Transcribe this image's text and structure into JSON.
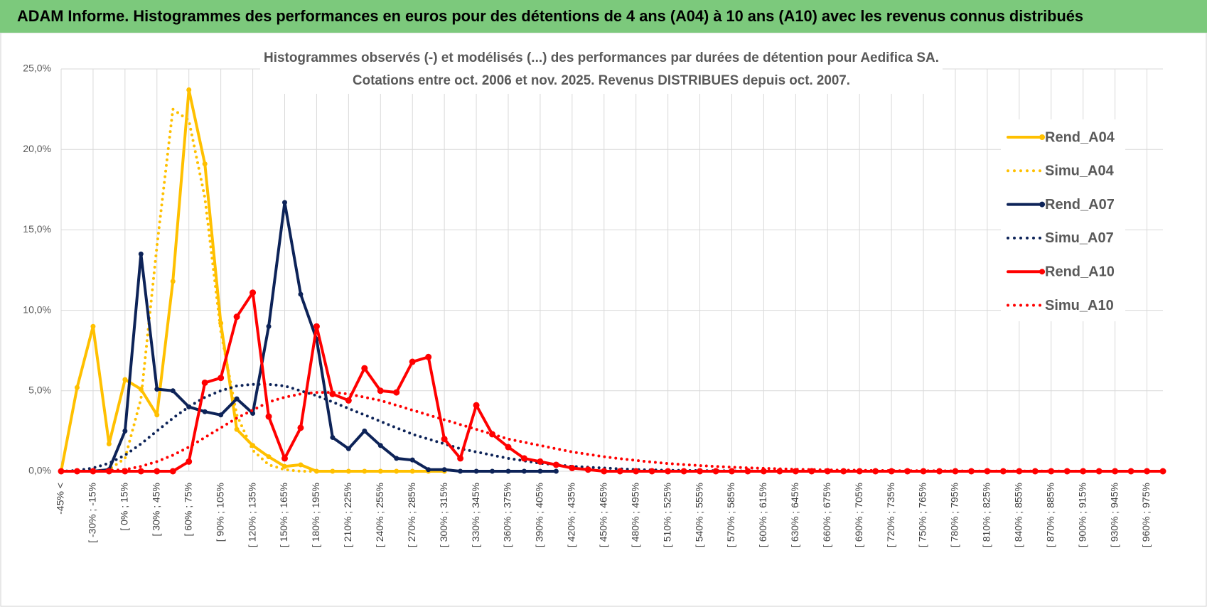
{
  "chart_data": {
    "type": "line",
    "header": "ADAM Informe. Histogrammes des performances en euros pour des détentions de 4 ans (A04) à 10 ans (A10) avec les revenus connus distribués",
    "title": "Histogrammes observés (-) et modélisés (...) des performances par durées de détention pour Aedifica SA.",
    "subtitle": "Cotations entre oct. 2006 et nov. 2025. Revenus DISTRIBUES depuis oct. 2007.",
    "categories": [
      "-45% <",
      null,
      "[ -30% ; -15%",
      null,
      "[ 0% ; 15%",
      null,
      "[ 30% ; 45%",
      null,
      "[ 60% ; 75%",
      null,
      "[ 90% ; 105%",
      null,
      "[ 120% ; 135%",
      null,
      "[ 150% ; 165%",
      null,
      "[ 180% ; 195%",
      null,
      "[ 210% ; 225%",
      null,
      "[ 240% ; 255%",
      null,
      "[ 270% ; 285%",
      null,
      "[ 300% ; 315%",
      null,
      "[ 330% ; 345%",
      null,
      "[ 360% ; 375%",
      null,
      "[ 390% ; 405%",
      null,
      "[ 420% ; 435%",
      null,
      "[ 450% ; 465%",
      null,
      "[ 480% ; 495%",
      null,
      "[ 510% ; 525%",
      null,
      "[ 540% ; 555%",
      null,
      "[ 570% ; 585%",
      null,
      "[ 600% ; 615%",
      null,
      "[ 630% ; 645%",
      null,
      "[ 660% ; 675%",
      null,
      "[ 690% ; 705%",
      null,
      "[ 720% ; 735%",
      null,
      "[ 750% ; 765%",
      null,
      "[ 780% ; 795%",
      null,
      "[ 810% ; 825%",
      null,
      "[ 840% ; 855%",
      null,
      "[ 870% ; 885%",
      null,
      "[ 900% ; 915%",
      null,
      "[ 930% ; 945%",
      null,
      "[ 960% ; 975%",
      null
    ],
    "ylim": [
      0,
      25
    ],
    "yticks": [
      {
        "value": 0,
        "label": "0,0%"
      },
      {
        "value": 5,
        "label": "5,0%"
      },
      {
        "value": 10,
        "label": "10,0%"
      },
      {
        "value": 15,
        "label": "15,0%"
      },
      {
        "value": 20,
        "label": "20,0%"
      },
      {
        "value": 25,
        "label": "25,0%"
      }
    ],
    "grid": true,
    "legend": "right",
    "series": [
      {
        "name": "Rend_A04",
        "color": "#ffc000",
        "style": "solid",
        "marker": true,
        "values": [
          0,
          5.2,
          9.0,
          1.7,
          5.7,
          5.1,
          3.5,
          11.8,
          23.7,
          19.1,
          9.2,
          2.6,
          1.6,
          0.9,
          0.3,
          0.4,
          0,
          0,
          0,
          0,
          0,
          0,
          0,
          0,
          0,
          null,
          null,
          null,
          null,
          null,
          null,
          null,
          null,
          null,
          null,
          null,
          null,
          null,
          null,
          null,
          null,
          null,
          null,
          null,
          null,
          null,
          null,
          null,
          null,
          null,
          null,
          null,
          null,
          null,
          null,
          null,
          null,
          null,
          null,
          null,
          null,
          null,
          null,
          null,
          null,
          null,
          null,
          null,
          null,
          null
        ]
      },
      {
        "name": "Simu_A04",
        "color": "#ffc000",
        "style": "dotted",
        "marker": false,
        "values": [
          0,
          0,
          0,
          0.1,
          0.8,
          4.5,
          14,
          22.5,
          21.8,
          17,
          8.7,
          3.5,
          1.3,
          0.4,
          0.1,
          0,
          0,
          0,
          0,
          0,
          0,
          0,
          0,
          0,
          0,
          null,
          null,
          null,
          null,
          null,
          null,
          null,
          null,
          null,
          null,
          null,
          null,
          null,
          null,
          null,
          null,
          null,
          null,
          null,
          null,
          null,
          null,
          null,
          null,
          null,
          null,
          null,
          null,
          null,
          null,
          null,
          null,
          null,
          null,
          null,
          null,
          null,
          null,
          null,
          null,
          null,
          null,
          null,
          null,
          null
        ]
      },
      {
        "name": "Rend_A07",
        "color": "#0d2358",
        "style": "solid",
        "marker": true,
        "values": [
          0,
          0,
          0,
          0.1,
          2.5,
          13.5,
          5.1,
          5.0,
          4.0,
          3.7,
          3.5,
          4.5,
          3.6,
          9.0,
          16.7,
          11.0,
          8.2,
          2.1,
          1.4,
          2.5,
          1.6,
          0.8,
          0.7,
          0.1,
          0.1,
          0,
          0,
          0,
          0,
          0,
          0,
          0,
          null,
          null,
          null,
          null,
          null,
          null,
          null,
          null,
          null,
          null,
          null,
          null,
          null,
          null,
          null,
          null,
          null,
          null,
          null,
          null,
          null,
          null,
          null,
          null,
          null,
          null,
          null,
          null,
          null,
          null,
          null,
          null,
          null,
          null,
          null,
          null,
          null,
          null
        ]
      },
      {
        "name": "Simu_A07",
        "color": "#0d2358",
        "style": "dotted",
        "marker": false,
        "values": [
          0,
          0.05,
          0.2,
          0.5,
          1.0,
          1.7,
          2.5,
          3.3,
          4.0,
          4.6,
          5.0,
          5.3,
          5.4,
          5.4,
          5.3,
          5.0,
          4.7,
          4.3,
          3.9,
          3.5,
          3.1,
          2.7,
          2.3,
          2.0,
          1.7,
          1.4,
          1.2,
          1.0,
          0.8,
          0.65,
          0.5,
          0.4,
          0.3,
          0.25,
          0.2,
          0.15,
          0.1,
          0.08,
          0.06,
          0.05,
          0.04,
          0.03,
          0.02,
          0.01,
          0.01,
          0.01,
          0.01,
          0.01,
          0.01,
          0.01,
          0.01,
          0,
          0,
          0,
          0,
          0,
          0,
          0,
          0,
          0,
          0,
          0,
          0,
          0,
          0,
          0,
          0,
          0,
          0,
          0
        ]
      },
      {
        "name": "Rend_A10",
        "color": "#ff0000",
        "style": "solid",
        "marker": true,
        "values": [
          0,
          0,
          0,
          0,
          0,
          0,
          0,
          0,
          0.6,
          5.5,
          5.8,
          9.6,
          11.1,
          3.4,
          0.8,
          2.7,
          9.0,
          4.8,
          4.4,
          6.4,
          5.0,
          4.9,
          6.8,
          7.1,
          2.0,
          0.8,
          4.1,
          2.3,
          1.5,
          0.8,
          0.6,
          0.4,
          0.2,
          0.1,
          0,
          0,
          0,
          0,
          0,
          0,
          0,
          0,
          0,
          0,
          0,
          0,
          0,
          0,
          0,
          0,
          0,
          0,
          0,
          0,
          0,
          0,
          0,
          0,
          0,
          0,
          0,
          0,
          0,
          0,
          0,
          0,
          0,
          0,
          0,
          0
        ]
      },
      {
        "name": "Simu_A10",
        "color": "#ff0000",
        "style": "dotted",
        "marker": false,
        "values": [
          0,
          0,
          0,
          0.05,
          0.1,
          0.3,
          0.6,
          1.0,
          1.5,
          2.1,
          2.7,
          3.3,
          3.8,
          4.3,
          4.6,
          4.8,
          4.9,
          4.9,
          4.8,
          4.6,
          4.4,
          4.1,
          3.8,
          3.5,
          3.2,
          2.9,
          2.6,
          2.3,
          2.0,
          1.8,
          1.6,
          1.4,
          1.2,
          1.05,
          0.9,
          0.78,
          0.67,
          0.57,
          0.48,
          0.41,
          0.35,
          0.3,
          0.25,
          0.21,
          0.18,
          0.15,
          0.12,
          0.1,
          0.08,
          0.07,
          0.06,
          0.05,
          0.04,
          0.03,
          0.03,
          0.02,
          0.02,
          0.01,
          0.01,
          0.01,
          0.01,
          0.01,
          0.01,
          0.01,
          0,
          0,
          0,
          0,
          0,
          0
        ]
      }
    ]
  }
}
